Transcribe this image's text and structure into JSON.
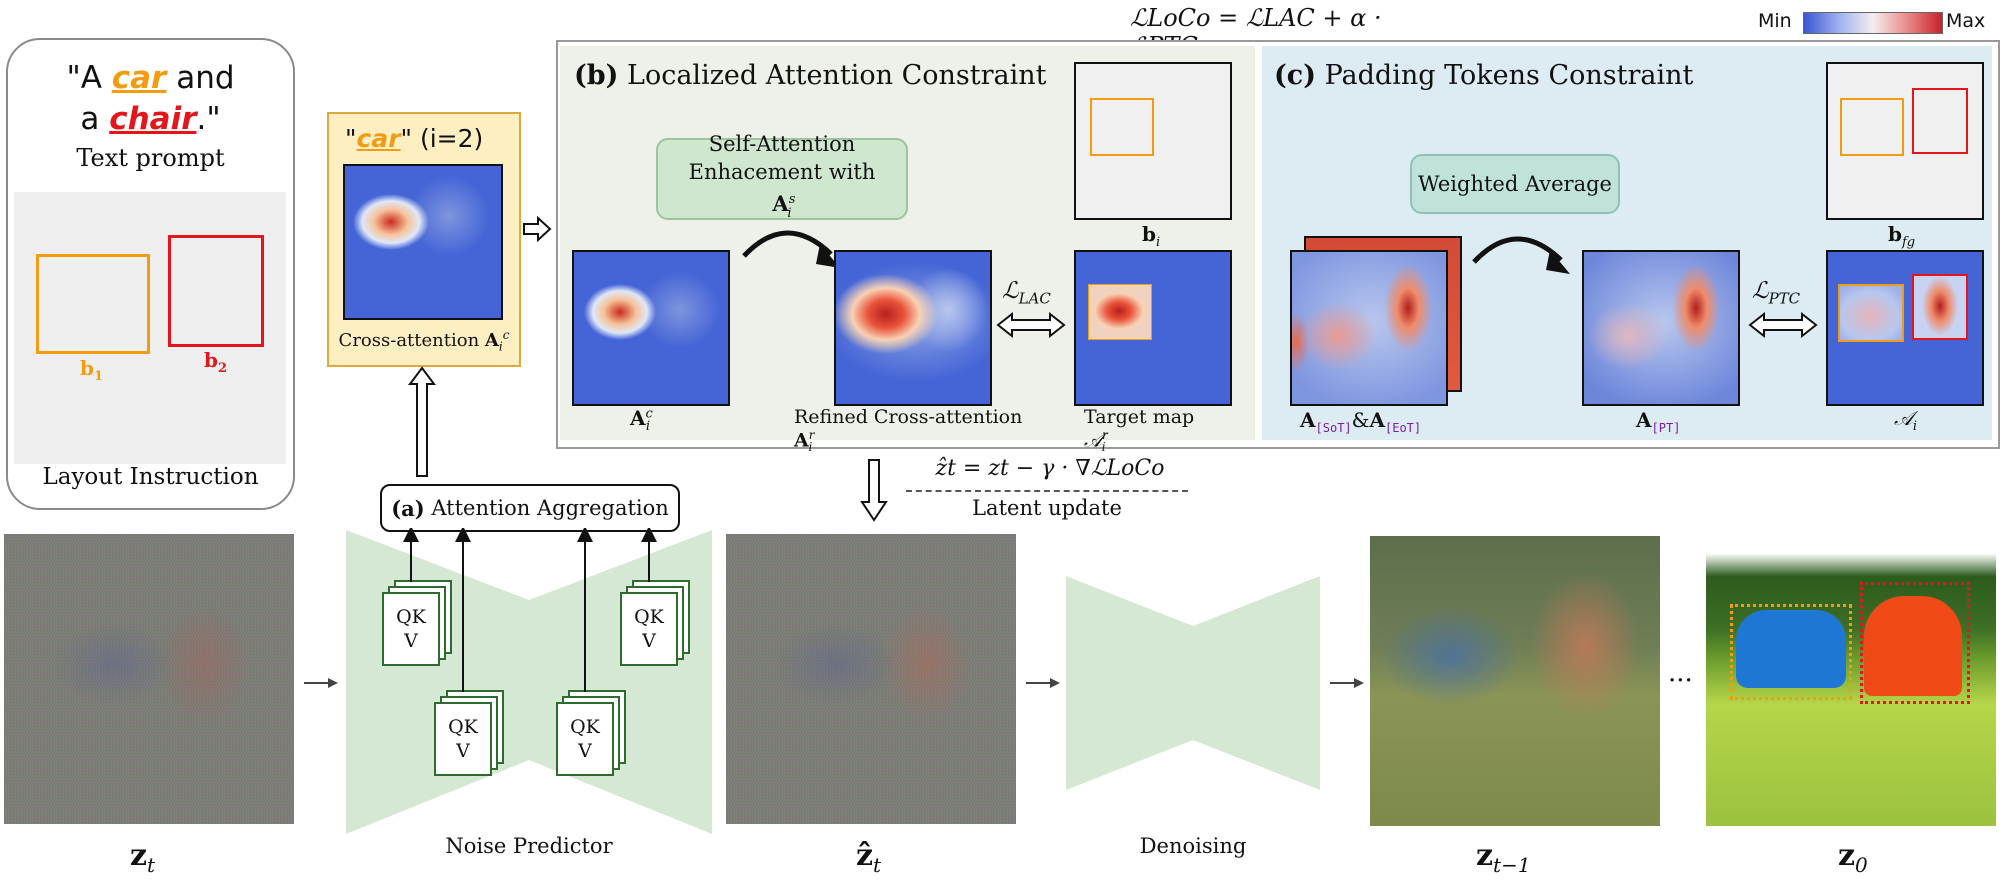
{
  "formula_top": "ℒLoCo = ℒLAC + α · ℒPTC",
  "colorbar": {
    "min": "Min",
    "max": "Max",
    "colors": [
      "#3b56d1",
      "#ffffff",
      "#d32b2b"
    ]
  },
  "prompt": {
    "quote_open": "\"A ",
    "word1": "car",
    "mid": " and",
    "line2_a": "a ",
    "word2": "chair",
    "quote_close": ".\"",
    "caption": "Text prompt",
    "layout_caption": "Layout Instruction",
    "b1": "b",
    "b1_sub": "1",
    "b2": "b",
    "b2_sub": "2",
    "b1_color": "#f39c12",
    "b2_color": "#e4161c"
  },
  "cross_attention": {
    "title_word": "car",
    "title_index": " (i=2)",
    "caption": "Cross-attention ",
    "symbol": "A",
    "sub": "i",
    "sup": "c"
  },
  "panel_b": {
    "label": "(b)",
    "title": "Localized Attention Constraint",
    "self_attention_line1": "Self-Attention",
    "self_attention_line2": "Enhacement with ",
    "self_attention_symbol": "A",
    "self_attention_sub": "i",
    "self_attention_sup": "s",
    "caption_a": "A",
    "caption_a_sub": "i",
    "caption_a_sup": "c",
    "caption_refined": "Refined Cross-attention ",
    "caption_refined_sup": "r",
    "caption_refined_sub": "i",
    "caption_target": "Target map ",
    "caption_target_sym": "𝒜",
    "caption_target_sup": "r",
    "caption_target_sub": "i",
    "caption_bi": "b",
    "caption_bi_sub": "i",
    "loss": "ℒ",
    "loss_sub": "LAC"
  },
  "panel_c": {
    "label": "(c)",
    "title": "Padding Tokens Constraint",
    "weighted_avg": "Weighted Average",
    "caption_sot_a": "A",
    "caption_sot": "[SoT]",
    "caption_amp": "&",
    "caption_eot_a": "A",
    "caption_eot": "[EoT]",
    "caption_pt_a": "A",
    "caption_pt": "[PT]",
    "caption_ai": "𝒜",
    "caption_ai_sub": "i",
    "caption_bfg": "b",
    "caption_bfg_sub": "fg",
    "loss": "ℒ",
    "loss_sub": "PTC"
  },
  "latent_update": {
    "formula": "ẑt = zt − γ · ∇ℒLoCo",
    "caption": "Latent update"
  },
  "aggregation": {
    "label": "(a)",
    "title": "Attention Aggregation"
  },
  "qk_labels": {
    "line1": "QK",
    "line2": "V"
  },
  "bottom": {
    "noise_predictor": "Noise Predictor",
    "denoising": "Denoising",
    "zt": "z",
    "zt_sub": "t",
    "zhat": "ẑ",
    "zhat_sub": "t",
    "zt1": "z",
    "zt1_sub": "t−1",
    "z0": "z",
    "z0_sub": "0",
    "ellipsis": "···"
  }
}
